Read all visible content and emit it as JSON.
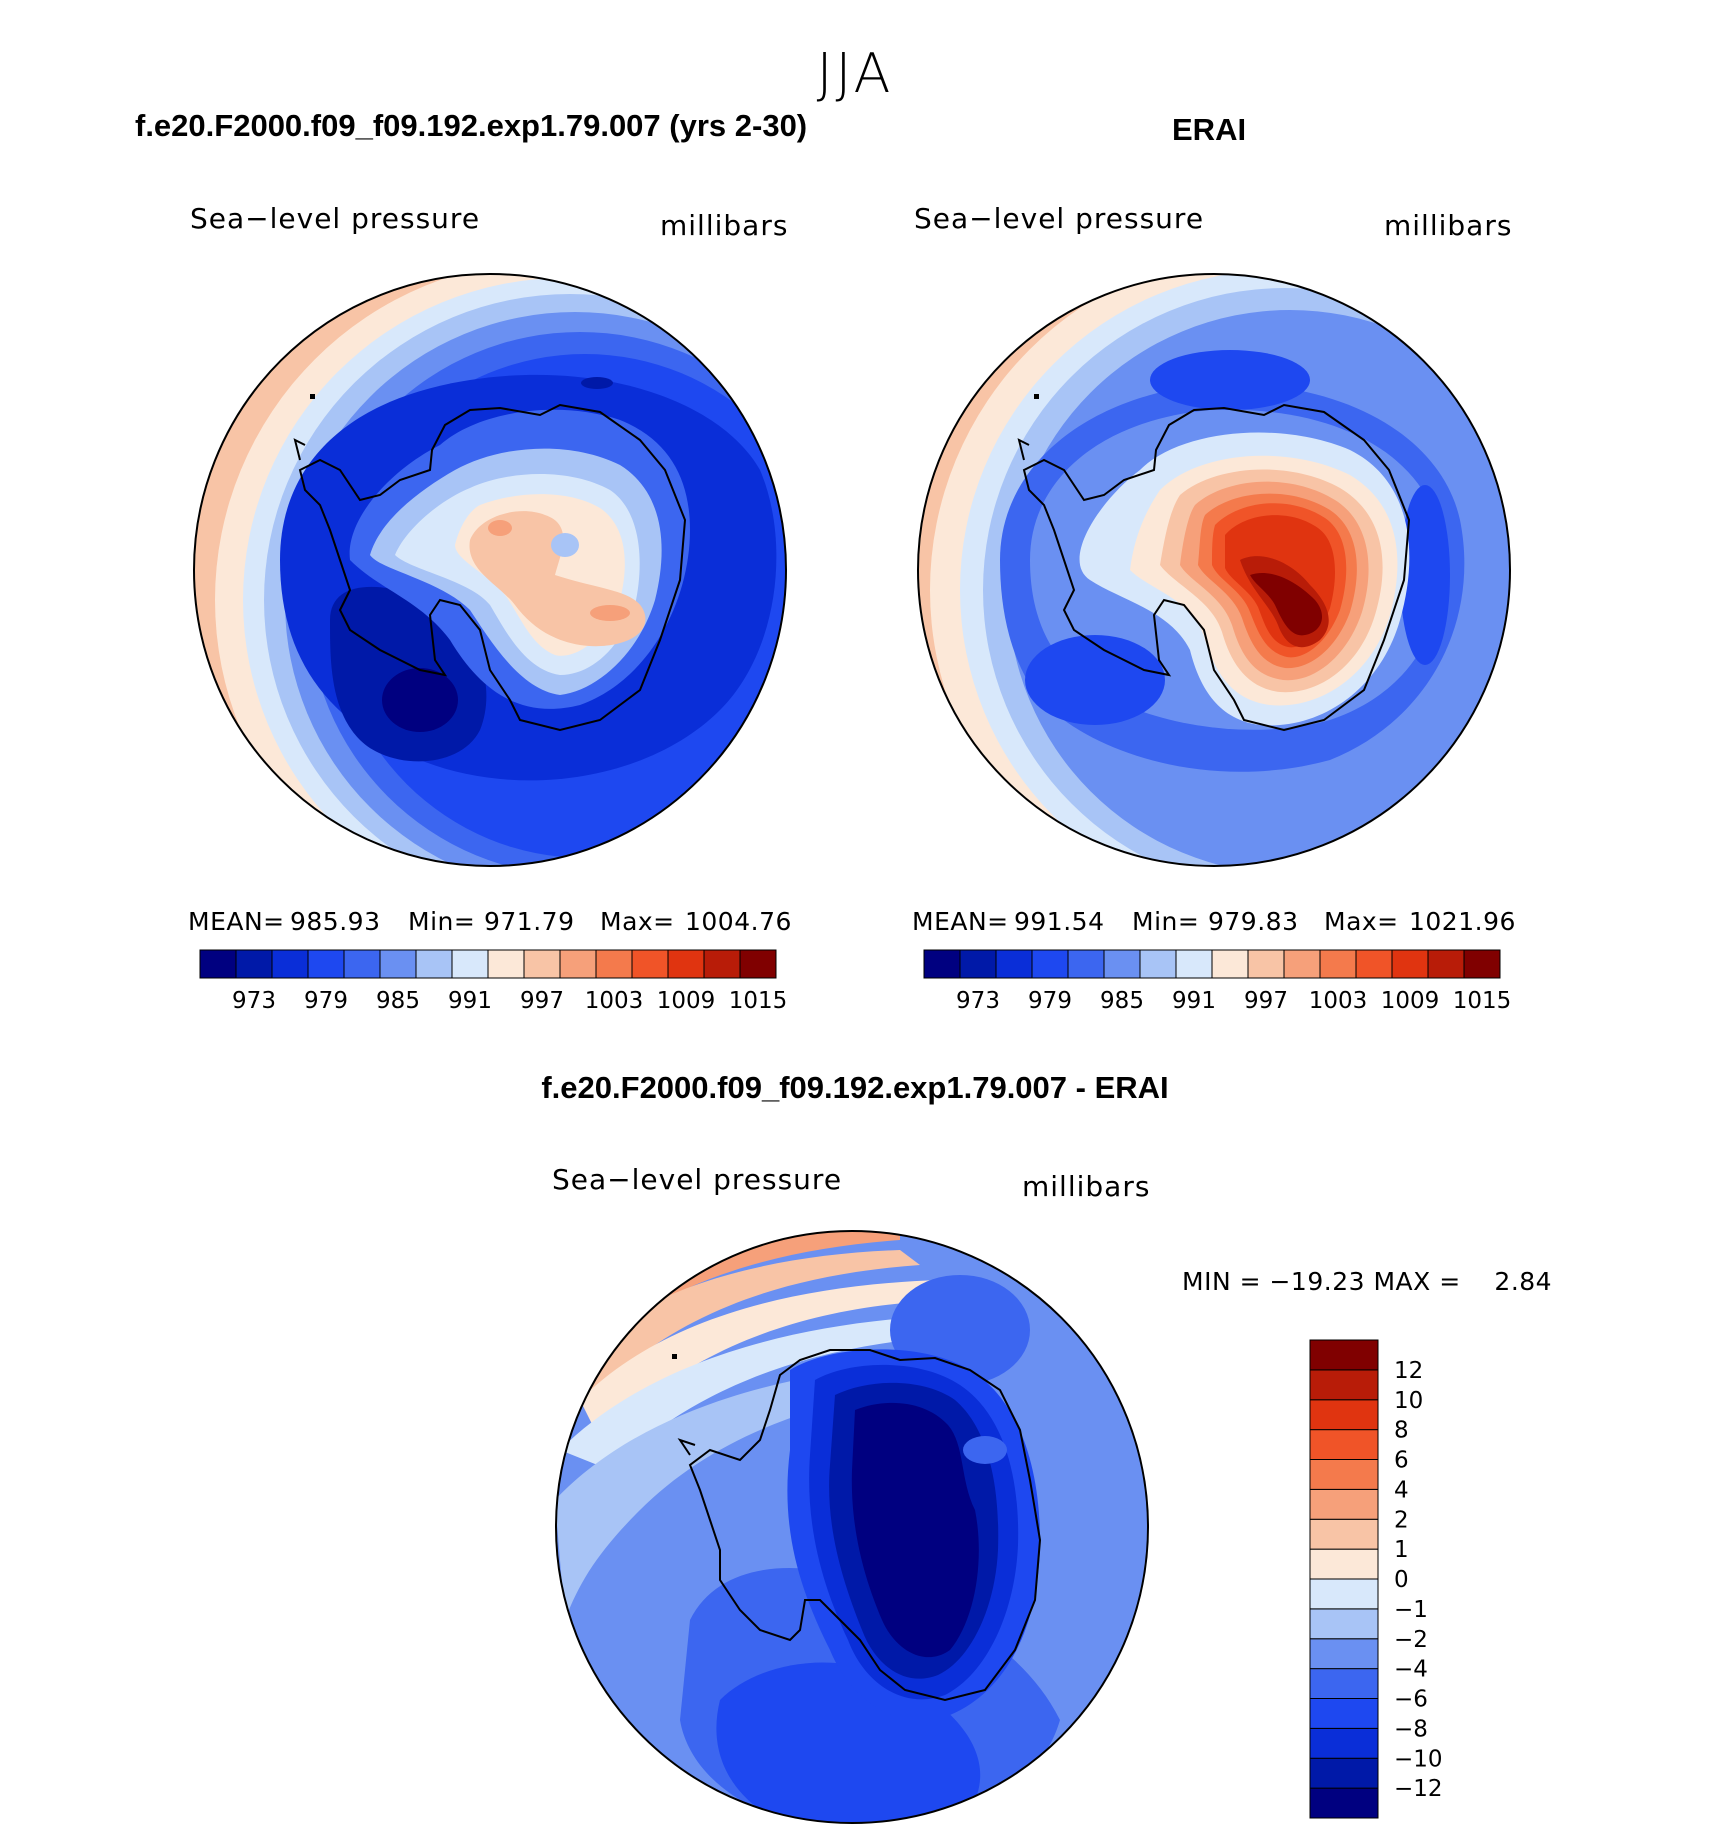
{
  "page": {
    "season": "JJA"
  },
  "panels": {
    "model": {
      "title": "f.e20.F2000.f09_f09.192.exp1.79.007 (yrs 2-30)",
      "variable": "Sea−level pressure",
      "units": "millibars",
      "mean_label": "MEAN=",
      "mean_value": "985.93",
      "min_label": "Min=",
      "min_value": "971.79",
      "max_label": "Max=",
      "max_value": "1004.76"
    },
    "obs": {
      "title": "ERAI",
      "variable": "Sea−level pressure",
      "units": "millibars",
      "mean_label": "MEAN=",
      "mean_value": "991.54",
      "min_label": "Min=",
      "min_value": "979.83",
      "max_label": "Max=",
      "max_value": "1021.96"
    },
    "diff": {
      "title": "f.e20.F2000.f09_f09.192.exp1.79.007 - ERAI",
      "variable": "Sea−level pressure",
      "units": "millibars",
      "minmax_text": "MIN = −19.23 MAX =    2.84"
    }
  },
  "colorbars": {
    "field": {
      "colors": [
        "#000080",
        "#0019a8",
        "#0a2ed8",
        "#1e48f0",
        "#3c66f0",
        "#6a90f2",
        "#a8c4f6",
        "#d8e8fb",
        "#fce8d8",
        "#f8c4a6",
        "#f6a07a",
        "#f47a4c",
        "#f05428",
        "#e03410",
        "#b81c08",
        "#800000"
      ],
      "tick_labels": [
        "973",
        "979",
        "985",
        "991",
        "997",
        "1003",
        "1009",
        "1015"
      ]
    },
    "diff": {
      "colors": [
        "#000080",
        "#0019a8",
        "#0a2ed8",
        "#1e48f0",
        "#3c66f0",
        "#6a90f2",
        "#a8c4f6",
        "#d8e8fb",
        "#fce8d8",
        "#f8c4a6",
        "#f6a07a",
        "#f47a4c",
        "#f05428",
        "#e03410",
        "#b81c08",
        "#800000"
      ],
      "tick_labels": [
        "12",
        "10",
        "8",
        "6",
        "4",
        "2",
        "1",
        "0",
        "−1",
        "−2",
        "−4",
        "−6",
        "−8",
        "−10",
        "−12"
      ]
    }
  },
  "map_colors": {
    "c_blue_deep": "#000080",
    "c_blue_1": "#0019a8",
    "c_blue_2": "#0a2ed8",
    "c_blue_3": "#1e48f0",
    "c_blue_4": "#3c66f0",
    "c_blue_5": "#6a90f2",
    "c_blue_6": "#a8c4f6",
    "c_blue_7": "#d8e8fb",
    "c_red_0": "#fce8d8",
    "c_red_1": "#f8c4a6",
    "c_red_2": "#f6a07a",
    "c_red_3": "#f47a4c",
    "c_red_4": "#f05428",
    "c_red_5": "#e03410",
    "c_red_6": "#b81c08",
    "c_red_7": "#800000"
  }
}
